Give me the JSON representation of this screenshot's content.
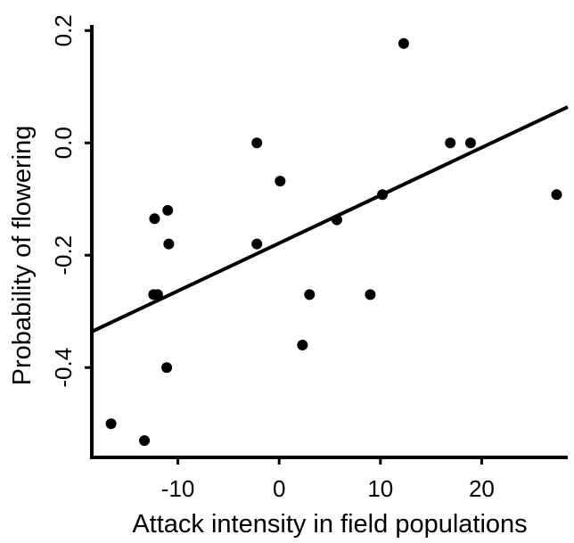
{
  "chart_data": {
    "type": "scatter",
    "xlabel": "Attack intensity in field populations",
    "ylabel": "Probability of flowering",
    "xlim": [
      -18.5,
      28.5
    ],
    "ylim": [
      -0.56,
      0.21
    ],
    "x_ticks": [
      {
        "value": -10,
        "label": "-10"
      },
      {
        "value": 0,
        "label": "0"
      },
      {
        "value": 10,
        "label": "10"
      },
      {
        "value": 20,
        "label": "20"
      }
    ],
    "y_ticks": [
      {
        "value": 0.2,
        "label": "0.2"
      },
      {
        "value": 0.0,
        "label": "0.0"
      },
      {
        "value": -0.2,
        "label": "-0.2"
      },
      {
        "value": -0.4,
        "label": "-0.4"
      }
    ],
    "grid": false,
    "legend": "none",
    "points": [
      {
        "x": -16.6,
        "y": -0.5
      },
      {
        "x": -13.3,
        "y": -0.53
      },
      {
        "x": -12.4,
        "y": -0.27
      },
      {
        "x": -12.0,
        "y": -0.27
      },
      {
        "x": -12.3,
        "y": -0.135
      },
      {
        "x": -11.0,
        "y": -0.12
      },
      {
        "x": -10.9,
        "y": -0.18
      },
      {
        "x": -11.1,
        "y": -0.4
      },
      {
        "x": -2.2,
        "y": 0.0
      },
      {
        "x": -2.2,
        "y": -0.18
      },
      {
        "x": 0.1,
        "y": -0.068
      },
      {
        "x": 2.3,
        "y": -0.36
      },
      {
        "x": 3.0,
        "y": -0.27
      },
      {
        "x": 5.7,
        "y": -0.137
      },
      {
        "x": 9.0,
        "y": -0.27
      },
      {
        "x": 10.2,
        "y": -0.092
      },
      {
        "x": 12.3,
        "y": 0.177
      },
      {
        "x": 16.9,
        "y": 0.0
      },
      {
        "x": 18.9,
        "y": 0.0
      },
      {
        "x": 27.4,
        "y": -0.092
      }
    ],
    "fit_line": {
      "x": [
        -18.5,
        28.5
      ],
      "y": [
        -0.336,
        0.064
      ]
    },
    "colors": {
      "points": "#000000",
      "line": "#000000",
      "axes": "#000000"
    }
  }
}
